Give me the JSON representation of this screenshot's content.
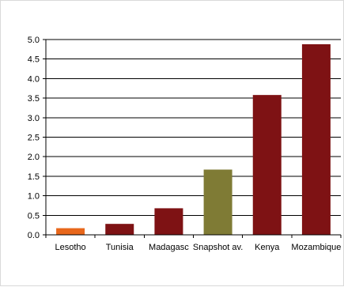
{
  "chart_data": {
    "type": "bar",
    "title": "",
    "xlabel": "",
    "ylabel": "",
    "categories": [
      "Lesotho",
      "Tunisia",
      "Madagasc",
      "Snapshot av.",
      "Kenya",
      "Mozambique"
    ],
    "values": [
      0.17,
      0.28,
      0.68,
      1.67,
      3.58,
      4.88
    ],
    "bar_colors": [
      "#E8671B",
      "#7E1214",
      "#7E1214",
      "#7F7B35",
      "#7E1214",
      "#7E1214"
    ],
    "ylim": [
      0,
      5
    ],
    "yticks": [
      0.0,
      0.5,
      1.0,
      1.5,
      2.0,
      2.5,
      3.0,
      3.5,
      4.0,
      4.5,
      5.0
    ],
    "grid": true,
    "legend": "none"
  }
}
